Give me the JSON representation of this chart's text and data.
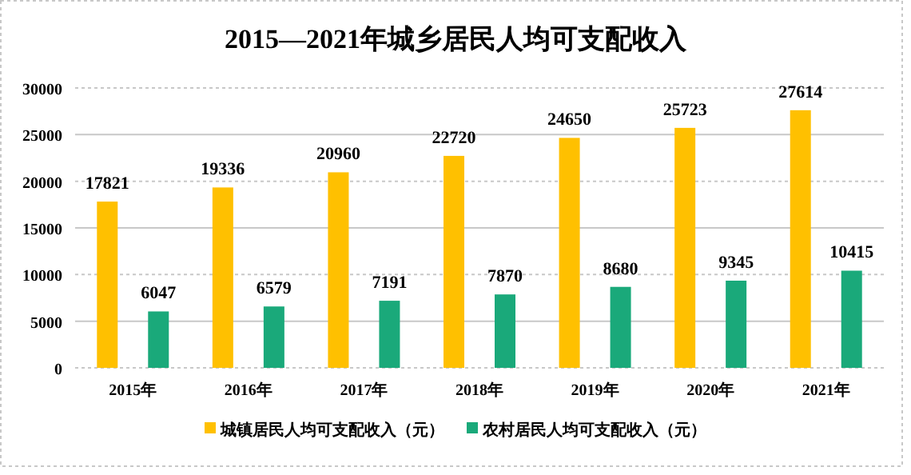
{
  "chart_data": {
    "type": "bar",
    "title": "2015—2021年城乡居民人均可支配收入",
    "categories": [
      "2015年",
      "2016年",
      "2017年",
      "2018年",
      "2019年",
      "2020年",
      "2021年"
    ],
    "series": [
      {
        "name": "城镇居民人均可支配收入（元）",
        "color": "#ffc000",
        "values": [
          17821,
          19336,
          20960,
          22720,
          24650,
          25723,
          27614
        ]
      },
      {
        "name": "农村居民人均可支配收入（元）",
        "color": "#1aa97a",
        "values": [
          6047,
          6579,
          7191,
          7870,
          8680,
          9345,
          10415
        ]
      }
    ],
    "ylim": [
      0,
      30000
    ],
    "yticks": [
      0,
      5000,
      10000,
      15000,
      20000,
      25000,
      30000
    ],
    "grid": "y",
    "legend": "bottom",
    "data_labels": true
  }
}
